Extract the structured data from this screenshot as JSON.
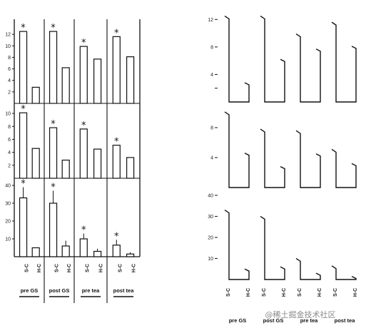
{
  "chart_data": [
    {
      "type": "bar",
      "groups": [
        "pre GS",
        "post GS",
        "pre tea",
        "post tea"
      ],
      "bar_labels": [
        "S-C",
        "H-C"
      ],
      "significance_marker": "*",
      "panels": [
        {
          "yticks": [
            2,
            4,
            6,
            8,
            10,
            12
          ],
          "ylim": [
            0,
            14
          ],
          "values": [
            [
              12.5,
              2.8
            ],
            [
              12.5,
              6.2
            ],
            [
              9.9,
              7.7
            ],
            [
              11.6,
              8.1
            ]
          ],
          "errors": [
            [
              0,
              0
            ],
            [
              0,
              0
            ],
            [
              0,
              0
            ],
            [
              0,
              0
            ]
          ],
          "significant": [
            true,
            true,
            true,
            true
          ]
        },
        {
          "yticks": [
            2,
            4,
            6,
            8,
            10
          ],
          "ylim": [
            0,
            11
          ],
          "values": [
            [
              10.1,
              4.6
            ],
            [
              7.8,
              2.8
            ],
            [
              7.6,
              4.5
            ],
            [
              5.1,
              3.2
            ]
          ],
          "errors": [
            [
              0,
              0
            ],
            [
              0,
              0
            ],
            [
              0,
              0
            ],
            [
              0,
              0
            ]
          ],
          "significant": [
            true,
            true,
            true,
            true
          ]
        },
        {
          "yticks": [
            10,
            20,
            30,
            40
          ],
          "ylim": [
            0,
            42
          ],
          "values": [
            [
              33,
              5
            ],
            [
              30,
              6
            ],
            [
              10,
              3
            ],
            [
              6.5,
              1.5
            ]
          ],
          "errors": [
            [
              6,
              0
            ],
            [
              7,
              3
            ],
            [
              3,
              1.5
            ],
            [
              3,
              1
            ]
          ],
          "significant": [
            true,
            true,
            true,
            true
          ]
        }
      ]
    },
    {
      "type": "line",
      "groups": [
        "pre GS",
        "post GS",
        "pre tea",
        "post tea"
      ],
      "bar_labels": [
        "S-C",
        "H-C"
      ],
      "panels": [
        {
          "yticks": [
            2,
            4,
            8,
            12
          ],
          "ytick_labels": [
            "",
            "4",
            "8",
            "12"
          ],
          "ylim": [
            0,
            14
          ],
          "values": [
            [
              12.5,
              2.8
            ],
            [
              12.5,
              6.2
            ],
            [
              9.9,
              7.7
            ],
            [
              11.6,
              8.1
            ]
          ]
        },
        {
          "yticks": [
            4,
            8
          ],
          "ylim": [
            0,
            10
          ],
          "values": [
            [
              10.1,
              4.6
            ],
            [
              7.8,
              2.8
            ],
            [
              7.6,
              4.5
            ],
            [
              5.1,
              3.2
            ]
          ]
        },
        {
          "yticks": [
            10,
            20,
            30,
            40
          ],
          "ylim": [
            0,
            42
          ],
          "values": [
            [
              33,
              5
            ],
            [
              30,
              6
            ],
            [
              10,
              3
            ],
            [
              6.5,
              1.5
            ]
          ]
        }
      ]
    }
  ],
  "watermark": "@稀土掘金技术社区"
}
